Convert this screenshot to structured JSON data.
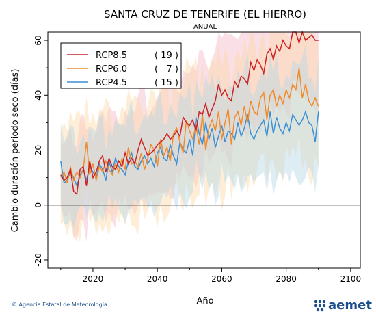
{
  "footer": {
    "text": "© Agencia Estatal de Meteorología",
    "logo_text": "aemet"
  },
  "chart_data": {
    "type": "line",
    "title": "SANTA CRUZ DE TENERIFE (EL HIERRO)",
    "subtitle": "ANUAL",
    "xlabel": "Año",
    "ylabel": "Cambio duración periodo seco (días)",
    "xlim": [
      2006,
      2103
    ],
    "ylim": [
      -23,
      63
    ],
    "xticks": [
      2020,
      2040,
      2060,
      2080,
      2100
    ],
    "yticks": [
      -20,
      0,
      20,
      40,
      60
    ],
    "reference_line": 0,
    "legend_position": "top-left",
    "band_colors": [
      "#f4b8c8",
      "#fdd9a8",
      "#b5d6e6"
    ],
    "series": [
      {
        "name": "RCP8.5",
        "count": "( 19 )",
        "color": "#cc2222",
        "start_year": 2010,
        "values": [
          11,
          9,
          10,
          13,
          5,
          4,
          13,
          14,
          7,
          16,
          10,
          12,
          16,
          18,
          12,
          17,
          14,
          13,
          16,
          14,
          19,
          15,
          17,
          15,
          20,
          24,
          21,
          18,
          19,
          20,
          22,
          23,
          24,
          26,
          24,
          25,
          27,
          25,
          32,
          30,
          29,
          31,
          27,
          34,
          33,
          37,
          32,
          35,
          38,
          44,
          40,
          42,
          39,
          38,
          45,
          43,
          47,
          46,
          44,
          52,
          49,
          53,
          51,
          48,
          55,
          57,
          53,
          58,
          56,
          60,
          58,
          57,
          63,
          64,
          59,
          65,
          60,
          61,
          62,
          60,
          60
        ]
      },
      {
        "name": "RCP6.0",
        "count": "(   7 )",
        "color": "#f08a2a",
        "start_year": 2010,
        "values": [
          10,
          12,
          8,
          14,
          9,
          12,
          10,
          13,
          23,
          11,
          15,
          9,
          14,
          12,
          16,
          13,
          11,
          15,
          12,
          17,
          13,
          21,
          15,
          16,
          14,
          19,
          13,
          17,
          22,
          20,
          14,
          24,
          18,
          21,
          16,
          26,
          28,
          23,
          19,
          31,
          27,
          24,
          29,
          22,
          33,
          20,
          28,
          31,
          27,
          34,
          24,
          30,
          35,
          22,
          32,
          34,
          29,
          36,
          30,
          38,
          34,
          33,
          39,
          41,
          31,
          40,
          42,
          36,
          40,
          37,
          42,
          39,
          44,
          42,
          50,
          39,
          44,
          38,
          36,
          39,
          36
        ]
      },
      {
        "name": "RCP4.5",
        "count": "( 15 )",
        "color": "#3a8fd6",
        "start_year": 2010,
        "values": [
          16,
          8,
          9,
          12,
          10,
          7,
          11,
          13,
          9,
          14,
          12,
          10,
          15,
          13,
          9,
          16,
          12,
          17,
          14,
          13,
          11,
          16,
          19,
          14,
          13,
          16,
          18,
          15,
          17,
          14,
          19,
          21,
          17,
          16,
          22,
          18,
          15,
          23,
          20,
          19,
          24,
          18,
          32,
          26,
          22,
          30,
          24,
          28,
          21,
          25,
          29,
          23,
          27,
          26,
          24,
          30,
          25,
          28,
          33,
          26,
          24,
          27,
          29,
          31,
          25,
          34,
          26,
          32,
          28,
          26,
          30,
          27,
          33,
          31,
          29,
          31,
          34,
          30,
          29,
          23,
          34
        ]
      }
    ]
  }
}
